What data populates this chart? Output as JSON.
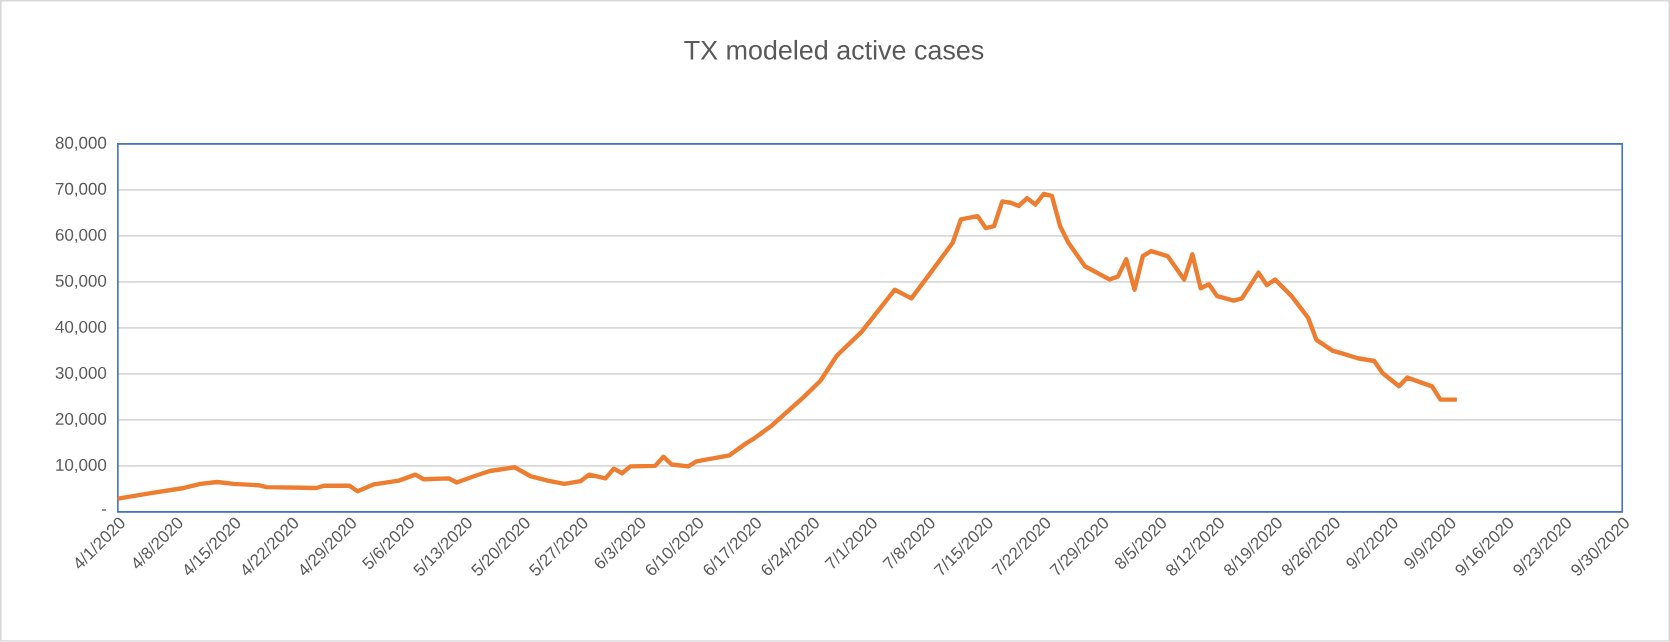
{
  "chart_data": {
    "type": "line",
    "title": "TX modeled active cases",
    "x": [
      "2020-04-01",
      "2020-04-05",
      "2020-04-09",
      "2020-04-11",
      "2020-04-13",
      "2020-04-15",
      "2020-04-18",
      "2020-04-19",
      "2020-04-25",
      "2020-04-26",
      "2020-04-29",
      "2020-04-30",
      "2020-05-02",
      "2020-05-05",
      "2020-05-07",
      "2020-05-08",
      "2020-05-11",
      "2020-05-12",
      "2020-05-14",
      "2020-05-16",
      "2020-05-19",
      "2020-05-21",
      "2020-05-23",
      "2020-05-25",
      "2020-05-27",
      "2020-05-28",
      "2020-05-30",
      "2020-05-31",
      "2020-06-01",
      "2020-06-02",
      "2020-06-05",
      "2020-06-06",
      "2020-06-07",
      "2020-06-09",
      "2020-06-10",
      "2020-06-14",
      "2020-06-16",
      "2020-06-17",
      "2020-06-19",
      "2020-06-23",
      "2020-06-25",
      "2020-06-27",
      "2020-06-30",
      "2020-07-04",
      "2020-07-06",
      "2020-07-08",
      "2020-07-11",
      "2020-07-12",
      "2020-07-14",
      "2020-07-15",
      "2020-07-16",
      "2020-07-17",
      "2020-07-18",
      "2020-07-19",
      "2020-07-20",
      "2020-07-21",
      "2020-07-22",
      "2020-07-23",
      "2020-07-24",
      "2020-07-25",
      "2020-07-27",
      "2020-07-30",
      "2020-07-31",
      "2020-08-01",
      "2020-08-02",
      "2020-08-03",
      "2020-08-04",
      "2020-08-06",
      "2020-08-08",
      "2020-08-09",
      "2020-08-10",
      "2020-08-11",
      "2020-08-12",
      "2020-08-14",
      "2020-08-15",
      "2020-08-17",
      "2020-08-18",
      "2020-08-19",
      "2020-08-21",
      "2020-08-23",
      "2020-08-24",
      "2020-08-26",
      "2020-08-27",
      "2020-08-29",
      "2020-08-31",
      "2020-09-01",
      "2020-09-03",
      "2020-09-04",
      "2020-09-07",
      "2020-09-08",
      "2020-09-10"
    ],
    "series": [
      {
        "color": "#ed7d31",
        "values": [
          2900,
          4100,
          5200,
          6100,
          6500,
          6100,
          5800,
          5400,
          5200,
          5700,
          5700,
          4500,
          6000,
          6800,
          8100,
          7100,
          7300,
          6400,
          7700,
          8900,
          9700,
          7700,
          6800,
          6100,
          6700,
          8100,
          7300,
          9400,
          8400,
          9900,
          10000,
          12000,
          10300,
          9900,
          11000,
          12300,
          14900,
          16000,
          18600,
          25000,
          28500,
          34000,
          39200,
          48300,
          46400,
          51200,
          58500,
          63600,
          64300,
          61700,
          62100,
          67500,
          67200,
          66500,
          68200,
          66800,
          69100,
          68700,
          62100,
          58500,
          53400,
          50500,
          51200,
          54900,
          48300,
          55600,
          56700,
          55600,
          50500,
          56000,
          48600,
          49500,
          46900,
          45900,
          46400,
          52000,
          49300,
          50500,
          46900,
          42200,
          37400,
          35000,
          34500,
          33400,
          32800,
          30200,
          27300,
          29200,
          27300,
          24400,
          24400
        ]
      }
    ],
    "xlim": [
      "2020-04-01",
      "2020-09-30"
    ],
    "xticks": [
      {
        "value": "2020-04-01",
        "label": "4/1/2020"
      },
      {
        "value": "2020-04-08",
        "label": "4/8/2020"
      },
      {
        "value": "2020-04-15",
        "label": "4/15/2020"
      },
      {
        "value": "2020-04-22",
        "label": "4/22/2020"
      },
      {
        "value": "2020-04-29",
        "label": "4/29/2020"
      },
      {
        "value": "2020-05-06",
        "label": "5/6/2020"
      },
      {
        "value": "2020-05-13",
        "label": "5/13/2020"
      },
      {
        "value": "2020-05-20",
        "label": "5/20/2020"
      },
      {
        "value": "2020-05-27",
        "label": "5/27/2020"
      },
      {
        "value": "2020-06-03",
        "label": "6/3/2020"
      },
      {
        "value": "2020-06-10",
        "label": "6/10/2020"
      },
      {
        "value": "2020-06-17",
        "label": "6/17/2020"
      },
      {
        "value": "2020-06-24",
        "label": "6/24/2020"
      },
      {
        "value": "2020-07-01",
        "label": "7/1/2020"
      },
      {
        "value": "2020-07-08",
        "label": "7/8/2020"
      },
      {
        "value": "2020-07-15",
        "label": "7/15/2020"
      },
      {
        "value": "2020-07-22",
        "label": "7/22/2020"
      },
      {
        "value": "2020-07-29",
        "label": "7/29/2020"
      },
      {
        "value": "2020-08-05",
        "label": "8/5/2020"
      },
      {
        "value": "2020-08-12",
        "label": "8/12/2020"
      },
      {
        "value": "2020-08-19",
        "label": "8/19/2020"
      },
      {
        "value": "2020-08-26",
        "label": "8/26/2020"
      },
      {
        "value": "2020-09-02",
        "label": "9/2/2020"
      },
      {
        "value": "2020-09-09",
        "label": "9/9/2020"
      },
      {
        "value": "2020-09-16",
        "label": "9/16/2020"
      },
      {
        "value": "2020-09-23",
        "label": "9/23/2020"
      },
      {
        "value": "2020-09-30",
        "label": "9/30/2020"
      }
    ],
    "ylim": [
      0,
      80000
    ],
    "yticks": [
      {
        "value": 0,
        "label": "-"
      },
      {
        "value": 10000,
        "label": "10,000"
      },
      {
        "value": 20000,
        "label": "20,000"
      },
      {
        "value": 30000,
        "label": "30,000"
      },
      {
        "value": 40000,
        "label": "40,000"
      },
      {
        "value": 50000,
        "label": "50,000"
      },
      {
        "value": 60000,
        "label": "60,000"
      },
      {
        "value": 70000,
        "label": "70,000"
      },
      {
        "value": 80000,
        "label": "80,000"
      }
    ],
    "grid": "y",
    "marker": "none",
    "line_style": "solid"
  }
}
